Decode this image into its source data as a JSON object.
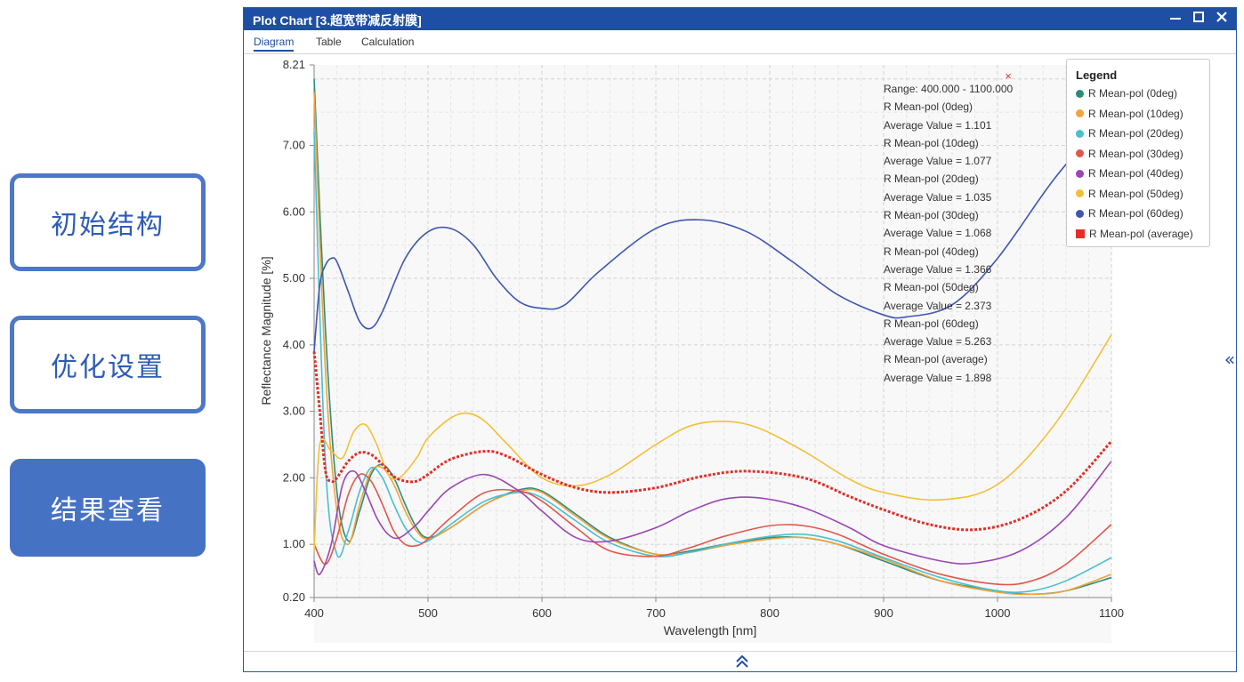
{
  "nav": {
    "items": [
      {
        "label": "初始结构"
      },
      {
        "label": "优化设置"
      },
      {
        "label": "结果查看"
      }
    ]
  },
  "window": {
    "title": "Plot Chart [3.超宽带减反射膜]",
    "controls": [
      "minimize-icon",
      "maximize-icon",
      "close-icon"
    ],
    "tabs": [
      "Diagram",
      "Table",
      "Calculation"
    ],
    "active_tab": "Diagram"
  },
  "colors": {
    "titlebar": "#1f4fa4",
    "accent": "#4672c4"
  },
  "info_box": {
    "close_glyph": "×",
    "lines": [
      "Range: 400.000 - 1100.000",
      "R Mean-pol (0deg)",
      "Average Value = 1.101",
      "R Mean-pol (10deg)",
      "Average Value = 1.077",
      "R Mean-pol (20deg)",
      "Average Value = 1.035",
      "R Mean-pol (30deg)",
      "Average Value = 1.068",
      "R Mean-pol (40deg)",
      "Average Value = 1.366",
      "R Mean-pol (50deg)",
      "Average Value = 2.373",
      "R Mean-pol (60deg)",
      "Average Value = 5.263",
      "R Mean-pol (average)",
      "Average Value = 1.898"
    ]
  },
  "legend": {
    "title": "Legend"
  },
  "chart_data": {
    "type": "line",
    "xlabel": "Wavelength [nm]",
    "ylabel": "Reflectance Magnitude [%]",
    "xlim": [
      400,
      1100
    ],
    "ylim": [
      0.2,
      8.21
    ],
    "xticks": [
      400,
      500,
      600,
      700,
      800,
      900,
      1000,
      1100
    ],
    "yticks": [
      "0.20",
      "1.00",
      "2.00",
      "3.00",
      "4.00",
      "5.00",
      "6.00",
      "7.00",
      "8.21"
    ],
    "grid": true,
    "legend_position": "top-right",
    "series": [
      {
        "name": "R Mean-pol (0deg)",
        "color": "#2e8b7a",
        "x": [
          400,
          410,
          420,
          430,
          440,
          450,
          460,
          470,
          480,
          490,
          500,
          520,
          550,
          580,
          600,
          630,
          660,
          700,
          730,
          760,
          800,
          830,
          860,
          900,
          950,
          1000,
          1030,
          1060,
          1100
        ],
        "y": [
          8.0,
          4.2,
          1.8,
          1.05,
          1.5,
          2.05,
          2.2,
          2.0,
          1.6,
          1.25,
          1.1,
          1.25,
          1.6,
          1.82,
          1.8,
          1.45,
          1.1,
          0.85,
          0.9,
          1.0,
          1.1,
          1.1,
          1.0,
          0.75,
          0.45,
          0.3,
          0.25,
          0.3,
          0.5
        ]
      },
      {
        "name": "R Mean-pol (10deg)",
        "color": "#f2a33a",
        "x": [
          400,
          410,
          420,
          430,
          440,
          450,
          460,
          470,
          480,
          490,
          500,
          520,
          550,
          580,
          600,
          630,
          660,
          700,
          730,
          760,
          800,
          830,
          860,
          900,
          950,
          1000,
          1030,
          1060,
          1100
        ],
        "y": [
          7.8,
          3.6,
          1.5,
          1.0,
          1.6,
          2.1,
          2.15,
          1.9,
          1.5,
          1.2,
          1.08,
          1.25,
          1.6,
          1.8,
          1.78,
          1.42,
          1.08,
          0.85,
          0.88,
          0.98,
          1.08,
          1.1,
          1.0,
          0.78,
          0.45,
          0.28,
          0.25,
          0.3,
          0.55
        ]
      },
      {
        "name": "R Mean-pol (20deg)",
        "color": "#4bbfd0",
        "x": [
          400,
          410,
          420,
          430,
          440,
          450,
          460,
          470,
          480,
          490,
          500,
          520,
          550,
          580,
          600,
          630,
          660,
          700,
          730,
          760,
          800,
          830,
          860,
          900,
          950,
          1000,
          1030,
          1060,
          1100
        ],
        "y": [
          7.2,
          2.2,
          0.85,
          1.2,
          1.8,
          2.15,
          2.0,
          1.6,
          1.25,
          1.05,
          1.05,
          1.3,
          1.65,
          1.78,
          1.7,
          1.35,
          1.02,
          0.82,
          0.88,
          1.0,
          1.12,
          1.15,
          1.05,
          0.8,
          0.5,
          0.3,
          0.3,
          0.45,
          0.8
        ]
      },
      {
        "name": "R Mean-pol (30deg)",
        "color": "#e0574c",
        "x": [
          400,
          410,
          420,
          430,
          440,
          450,
          460,
          470,
          480,
          490,
          500,
          520,
          550,
          580,
          600,
          630,
          660,
          700,
          730,
          760,
          800,
          830,
          860,
          900,
          950,
          1000,
          1030,
          1060,
          1100
        ],
        "y": [
          1.0,
          0.7,
          1.1,
          1.75,
          2.05,
          1.95,
          1.6,
          1.2,
          1.0,
          0.98,
          1.08,
          1.4,
          1.78,
          1.8,
          1.65,
          1.25,
          0.9,
          0.82,
          0.95,
          1.12,
          1.28,
          1.28,
          1.15,
          0.85,
          0.55,
          0.4,
          0.45,
          0.7,
          1.3
        ]
      },
      {
        "name": "R Mean-pol (40deg)",
        "color": "#9b46b3",
        "x": [
          400,
          405,
          415,
          425,
          435,
          445,
          455,
          465,
          475,
          490,
          500,
          520,
          550,
          580,
          600,
          630,
          660,
          700,
          730,
          760,
          790,
          830,
          870,
          900,
          950,
          980,
          1020,
          1060,
          1100
        ],
        "y": [
          0.75,
          0.55,
          1.0,
          1.9,
          2.1,
          1.8,
          1.4,
          1.15,
          1.1,
          1.3,
          1.5,
          1.85,
          2.05,
          1.8,
          1.5,
          1.1,
          1.05,
          1.25,
          1.5,
          1.68,
          1.7,
          1.55,
          1.25,
          0.98,
          0.75,
          0.72,
          0.9,
          1.4,
          2.25
        ]
      },
      {
        "name": "R Mean-pol (50deg)",
        "color": "#f2c037",
        "x": [
          400,
          405,
          415,
          425,
          435,
          445,
          455,
          465,
          475,
          490,
          500,
          520,
          535,
          550,
          570,
          600,
          630,
          660,
          700,
          730,
          760,
          790,
          830,
          870,
          900,
          950,
          1000,
          1050,
          1100
        ],
        "y": [
          0.9,
          2.5,
          2.4,
          2.3,
          2.7,
          2.8,
          2.5,
          2.05,
          2.0,
          2.3,
          2.6,
          2.9,
          2.97,
          2.85,
          2.5,
          2.0,
          1.88,
          2.05,
          2.5,
          2.78,
          2.85,
          2.75,
          2.4,
          1.98,
          1.78,
          1.67,
          1.9,
          2.8,
          4.15
        ]
      },
      {
        "name": "R Mean-pol (60deg)",
        "color": "#3f57ad",
        "x": [
          400,
          405,
          410,
          415,
          420,
          430,
          440,
          450,
          460,
          480,
          500,
          520,
          540,
          560,
          580,
          600,
          620,
          650,
          700,
          740,
          780,
          820,
          860,
          900,
          920,
          960,
          1000,
          1050,
          1100
        ],
        "y": [
          3.9,
          4.9,
          5.2,
          5.3,
          5.25,
          4.8,
          4.35,
          4.25,
          4.5,
          5.3,
          5.7,
          5.75,
          5.5,
          5.0,
          4.65,
          4.55,
          4.6,
          5.1,
          5.75,
          5.88,
          5.7,
          5.25,
          4.75,
          4.45,
          4.42,
          4.6,
          5.3,
          6.5,
          7.5
        ]
      },
      {
        "name": "R Mean-pol (average)",
        "color": "#e0302a",
        "dashed": true,
        "x": [
          400,
          405,
          410,
          415,
          420,
          430,
          440,
          450,
          460,
          470,
          480,
          490,
          500,
          520,
          550,
          570,
          600,
          630,
          660,
          700,
          740,
          780,
          830,
          870,
          900,
          940,
          980,
          1020,
          1060,
          1100
        ],
        "y": [
          3.9,
          3.0,
          2.1,
          1.95,
          2.0,
          2.25,
          2.38,
          2.35,
          2.2,
          2.02,
          1.95,
          1.95,
          2.05,
          2.28,
          2.4,
          2.32,
          2.05,
          1.85,
          1.78,
          1.85,
          2.02,
          2.1,
          2.0,
          1.72,
          1.52,
          1.3,
          1.22,
          1.38,
          1.8,
          2.55
        ]
      }
    ]
  }
}
